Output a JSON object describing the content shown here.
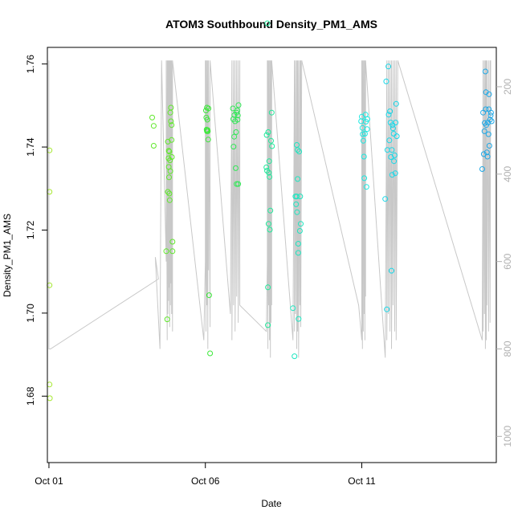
{
  "chart_data": {
    "type": "scatter",
    "title": "ATOM3 Southbound Density_PM1_AMS",
    "xlabel": "Date",
    "ylabel": "Density_PM1_AMS",
    "x_unit": "day of October",
    "xlim": [
      0.95,
      15.3
    ],
    "ylim": [
      1.664,
      1.764
    ],
    "x_ticks": [
      {
        "value": 1,
        "label": "Oct 01"
      },
      {
        "value": 6,
        "label": "Oct 06"
      },
      {
        "value": 11,
        "label": "Oct 11"
      }
    ],
    "y_ticks": [
      {
        "value": 1.68,
        "label": "1.68"
      },
      {
        "value": 1.7,
        "label": "1.70"
      },
      {
        "value": 1.72,
        "label": "1.72"
      },
      {
        "value": 1.74,
        "label": "1.74"
      },
      {
        "value": 1.76,
        "label": "1.76"
      }
    ],
    "y2_axis": {
      "reversed": true,
      "lim": [
        110,
        1060
      ],
      "ticks": [
        {
          "value": 200,
          "label": "200"
        },
        {
          "value": 400,
          "label": "400"
        },
        {
          "value": 600,
          "label": "600"
        },
        {
          "value": 800,
          "label": "800"
        },
        {
          "value": 1000,
          "label": "1000"
        }
      ],
      "color": "#b0b0b0"
    },
    "grid": false,
    "legend": "none",
    "colors": {
      "points_start": "#9aeb2c",
      "points_mid_green": "#2eea2e",
      "points_cyan": "#19e6e6",
      "points_blue": "#1f8de6",
      "profile_line": "#c8c8c8"
    },
    "series": [
      {
        "kind": "points",
        "color": "#a6e830",
        "x": [
          1.02,
          1.02,
          1.02,
          1.02,
          1.03
        ],
        "y": [
          1.7392,
          1.7292,
          1.7067,
          1.6828,
          1.6795
        ]
      },
      {
        "kind": "points",
        "color": "#5fe82a",
        "x": [
          4.3,
          4.35,
          4.35,
          4.75,
          4.78,
          4.8,
          4.8,
          4.82,
          4.83,
          4.83,
          4.84,
          4.85,
          4.85,
          4.86,
          4.87,
          4.88,
          4.88,
          4.9,
          4.9,
          4.92,
          4.92,
          4.93,
          4.95,
          4.95
        ],
        "y": [
          1.7471,
          1.7451,
          1.7403,
          1.7149,
          1.6985,
          1.7292,
          1.7413,
          1.7373,
          1.7391,
          1.7352,
          1.7327,
          1.7389,
          1.7288,
          1.7272,
          1.7368,
          1.7483,
          1.7342,
          1.7462,
          1.7495,
          1.7453,
          1.7417,
          1.7376,
          1.7172,
          1.7149
        ]
      },
      {
        "kind": "points",
        "color": "#3ce83a",
        "x": [
          6.02,
          6.03,
          6.04,
          6.05,
          6.05,
          6.06,
          6.07,
          6.08,
          6.09,
          6.1,
          6.12,
          6.15
        ],
        "y": [
          1.7488,
          1.7471,
          1.7442,
          1.7438,
          1.7495,
          1.7466,
          1.7441,
          1.7438,
          1.7418,
          1.7493,
          1.7043,
          1.6903
        ]
      },
      {
        "kind": "points",
        "color": "#32e857",
        "x": [
          6.88,
          6.89,
          6.9,
          6.92,
          6.93,
          6.95,
          6.97,
          6.98,
          7.0,
          7.0,
          7.02,
          7.03,
          7.04,
          7.05,
          7.06
        ],
        "y": [
          1.7493,
          1.7467,
          1.7401,
          1.7425,
          1.7477,
          1.7462,
          1.7349,
          1.7436,
          1.7483,
          1.7311,
          1.7488,
          1.7466,
          1.7476,
          1.7311,
          1.7501
        ]
      },
      {
        "kind": "points",
        "color": "#20e89a",
        "x": [
          7.95,
          7.96,
          7.97,
          7.98,
          8.0,
          8.0,
          8.01,
          8.02,
          8.03,
          8.04,
          8.05,
          8.06,
          8.08,
          8.1,
          8.12,
          8.13
        ],
        "y": [
          1.7351,
          1.7429,
          1.7343,
          1.7698,
          1.7062,
          1.6971,
          1.7436,
          1.7215,
          1.7338,
          1.7366,
          1.7328,
          1.7201,
          1.7247,
          1.7415,
          1.7483,
          1.7402
        ]
      },
      {
        "kind": "points",
        "color": "#1de6c0",
        "x": [
          8.8,
          8.85,
          8.88,
          8.9,
          8.92,
          8.92,
          8.93,
          8.95,
          8.95,
          8.97,
          8.97,
          8.98,
          9.0,
          9.02,
          9.03,
          9.05
        ],
        "y": [
          1.7012,
          1.6896,
          1.7281,
          1.7262,
          1.7405,
          1.7281,
          1.7243,
          1.7393,
          1.7323,
          1.7167,
          1.7145,
          1.6986,
          1.7389,
          1.7198,
          1.7281,
          1.7215
        ]
      },
      {
        "kind": "points",
        "color": "#1ae8e0",
        "x": [
          10.98,
          11.0,
          11.02,
          11.03,
          11.05,
          11.07,
          11.08,
          11.1,
          11.12,
          11.13,
          11.15,
          11.17,
          11.18
        ],
        "y": [
          1.7462,
          1.7473,
          1.7446,
          1.7431,
          1.7415,
          1.7377,
          1.7325,
          1.7432,
          1.7478,
          1.7461,
          1.7304,
          1.7443,
          1.7467
        ]
      },
      {
        "kind": "points",
        "color": "#1ad8e8",
        "x": [
          11.75,
          11.78,
          11.8,
          11.82,
          11.85,
          11.86,
          11.88,
          11.9,
          11.92,
          11.93,
          11.95,
          11.96,
          11.97,
          11.98,
          12.0,
          12.02,
          12.03,
          12.05,
          12.07,
          12.08,
          12.1,
          12.12
        ],
        "y": [
          1.7275,
          1.7558,
          1.7009,
          1.7393,
          1.7594,
          1.7478,
          1.7416,
          1.7486,
          1.7459,
          1.7376,
          1.7102,
          1.7393,
          1.7333,
          1.7453,
          1.7445,
          1.7432,
          1.7366,
          1.738,
          1.7337,
          1.7459,
          1.7504,
          1.7426
        ]
      },
      {
        "kind": "points",
        "color": "#1fa8e6",
        "x": [
          14.85,
          14.88,
          14.9,
          14.92,
          14.93,
          14.95,
          14.96,
          14.97,
          14.98,
          15.0,
          15.02,
          15.03,
          15.05,
          15.06,
          15.07,
          15.08,
          15.1,
          15.12,
          15.13,
          15.15
        ],
        "y": [
          1.7347,
          1.7483,
          1.7383,
          1.7438,
          1.7458,
          1.7582,
          1.7491,
          1.7532,
          1.7453,
          1.7387,
          1.7377,
          1.7459,
          1.7431,
          1.7491,
          1.7527,
          1.7403,
          1.7466,
          1.7476,
          1.7483,
          1.7462
        ]
      }
    ],
    "profile_line": {
      "kind": "line",
      "axis": "y2",
      "color": "#c8c8c8",
      "x": [
        1.0,
        1.0,
        1.05,
        1.05,
        4.5,
        4.5,
        4.4,
        4.55,
        4.6,
        4.6,
        4.75,
        4.75,
        4.78,
        4.78,
        4.8,
        4.8,
        4.82,
        4.82,
        4.84,
        4.84,
        4.86,
        4.86,
        4.88,
        4.88,
        4.9,
        4.9,
        4.92,
        4.92,
        4.95,
        4.95,
        5.95,
        6.0,
        6.0,
        6.02,
        6.02,
        6.05,
        6.05,
        6.08,
        6.08,
        6.1,
        6.1,
        6.15,
        6.15,
        6.8,
        6.85,
        6.85,
        6.9,
        6.9,
        6.95,
        6.95,
        7.0,
        7.0,
        7.05,
        7.05,
        7.1,
        7.1,
        7.95,
        7.98,
        7.98,
        8.0,
        8.0,
        8.02,
        8.02,
        8.05,
        8.05,
        8.08,
        8.08,
        8.1,
        8.1,
        8.12,
        8.12,
        8.8,
        8.85,
        8.85,
        8.88,
        8.88,
        8.92,
        8.92,
        8.95,
        8.95,
        8.98,
        8.98,
        9.02,
        9.02,
        9.05,
        9.05,
        9.08,
        10.9,
        11.0,
        11.0,
        11.02,
        11.02,
        11.05,
        11.05,
        11.08,
        11.08,
        11.1,
        11.1,
        11.12,
        11.12,
        11.75,
        11.8,
        11.8,
        11.85,
        11.85,
        11.9,
        11.9,
        11.95,
        11.95,
        12.0,
        12.0,
        12.05,
        12.05,
        12.1,
        12.1,
        12.15,
        14.85,
        14.88,
        14.88,
        14.92,
        14.92,
        14.95,
        14.95,
        14.98,
        14.98,
        15.0,
        15.0,
        15.05,
        15.05,
        15.1,
        15.1,
        15.12
      ],
      "y": [
        140,
        800,
        800,
        800,
        640,
        640,
        590,
        800,
        140,
        140,
        600,
        140,
        780,
        140,
        720,
        140,
        690,
        140,
        660,
        140,
        750,
        140,
        700,
        140,
        650,
        140,
        720,
        140,
        760,
        140,
        780,
        600,
        140,
        760,
        140,
        700,
        140,
        800,
        140,
        620,
        140,
        750,
        140,
        720,
        140,
        780,
        140,
        700,
        140,
        760,
        140,
        680,
        140,
        740,
        140,
        700,
        760,
        600,
        140,
        800,
        140,
        700,
        140,
        780,
        140,
        820,
        140,
        740,
        140,
        700,
        140,
        780,
        140,
        760,
        140,
        720,
        140,
        800,
        140,
        760,
        140,
        820,
        140,
        700,
        140,
        750,
        140,
        700,
        780,
        140,
        800,
        140,
        760,
        140,
        720,
        140,
        780,
        140,
        680,
        140,
        820,
        140,
        780,
        140,
        720,
        140,
        760,
        140,
        800,
        140,
        700,
        140,
        760,
        140,
        780,
        140,
        780,
        140,
        760,
        140,
        720,
        140,
        800,
        140,
        780,
        140,
        700,
        140,
        760,
        140,
        740,
        140
      ]
    }
  }
}
